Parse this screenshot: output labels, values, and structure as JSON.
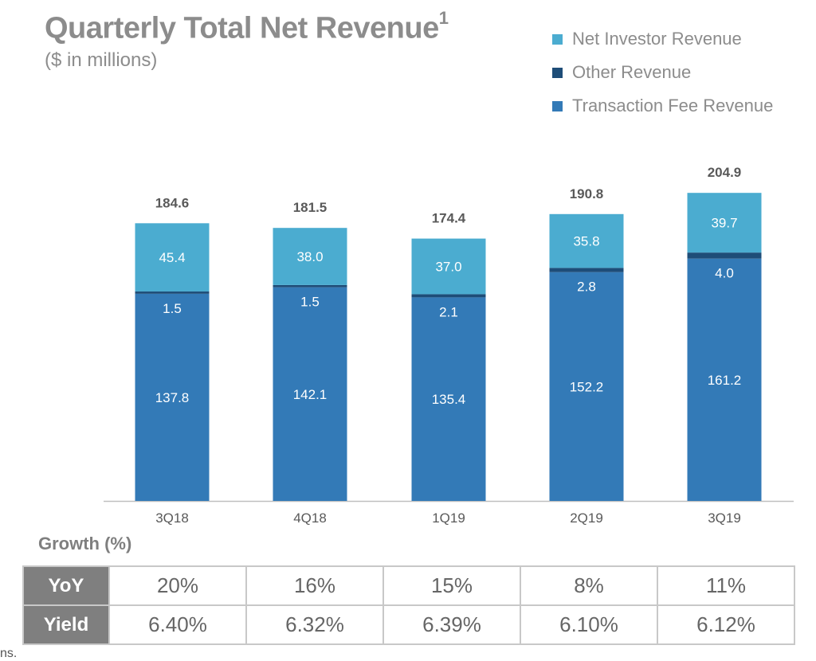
{
  "header": {
    "title": "Quarterly Total Net Revenue",
    "title_superscript": "1",
    "subtitle": "($ in millions)"
  },
  "colors": {
    "net_investor": "#4bacd0",
    "other": "#1e4d78",
    "transaction_fee": "#337ab7",
    "title": "#8c8c8c",
    "table_header": "#7f7f7f"
  },
  "legend": [
    {
      "label": "Net Investor  Revenue",
      "color": "#4bacd0"
    },
    {
      "label": "Other Revenue",
      "color": "#1e4d78"
    },
    {
      "label": "Transaction  Fee Revenue",
      "color": "#337ab7"
    }
  ],
  "chart_data": {
    "type": "bar",
    "stacked": true,
    "categories": [
      "3Q18",
      "4Q18",
      "1Q19",
      "2Q19",
      "3Q19"
    ],
    "series": [
      {
        "name": "Transaction  Fee Revenue",
        "values": [
          137.8,
          142.1,
          135.4,
          152.2,
          161.2
        ],
        "labels": [
          "137.8",
          "142.1",
          "135.4",
          "152.2",
          "161.2"
        ]
      },
      {
        "name": "Other Revenue",
        "values": [
          1.5,
          1.5,
          2.1,
          2.8,
          4.0
        ],
        "labels": [
          "1.5",
          "1.5",
          "2.1",
          "2.8",
          "4.0"
        ]
      },
      {
        "name": "Net Investor  Revenue",
        "values": [
          45.4,
          38.0,
          37.0,
          35.8,
          39.7
        ],
        "labels": [
          "45.4",
          "38.0",
          "37.0",
          "35.8",
          "39.7"
        ]
      }
    ],
    "totals": [
      184.6,
      181.5,
      174.4,
      190.8,
      204.9
    ],
    "total_labels": [
      "184.6",
      "181.5",
      "174.4",
      "190.8",
      "204.9"
    ],
    "ylim": [
      0,
      205
    ],
    "grid": false,
    "legend_position": "top-right"
  },
  "growth": {
    "label": "Growth (%)",
    "rows": [
      {
        "label": "YoY",
        "values": [
          "20%",
          "16%",
          "15%",
          "8%",
          "11%"
        ]
      },
      {
        "label": "Yield",
        "values": [
          "6.40%",
          "6.32%",
          "6.39%",
          "6.10%",
          "6.12%"
        ]
      }
    ]
  },
  "footnote": "ns."
}
